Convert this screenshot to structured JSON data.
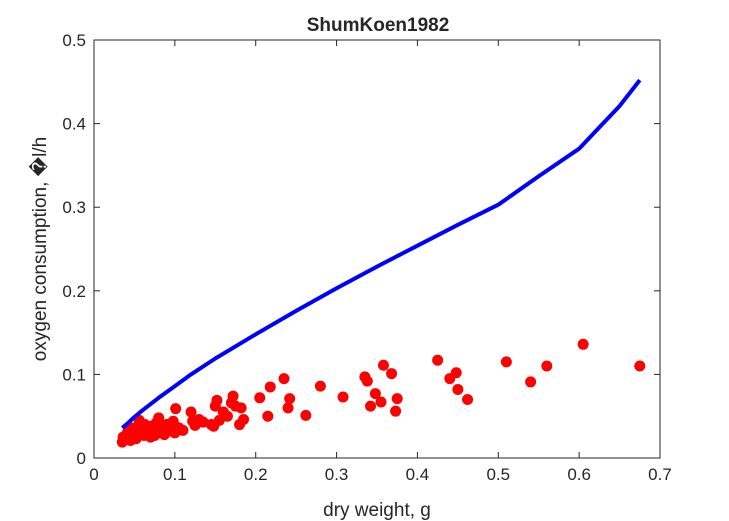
{
  "chart_data": {
    "type": "scatter",
    "title": "ShumKoen1982",
    "xlabel": "dry weight, g",
    "ylabel": "oxygen consumption, �l/h",
    "xlim": [
      0,
      0.7
    ],
    "ylim": [
      0,
      0.5
    ],
    "x_ticks": [
      "0",
      "0.1",
      "0.2",
      "0.3",
      "0.4",
      "0.5",
      "0.6",
      "0.7"
    ],
    "y_ticks": [
      "0",
      "0.1",
      "0.2",
      "0.3",
      "0.4",
      "0.5"
    ],
    "grid": false,
    "series": [
      {
        "style": "markers",
        "color": "#ff0000",
        "points": [
          [
            0.035,
            0.019
          ],
          [
            0.036,
            0.025
          ],
          [
            0.037,
            0.022
          ],
          [
            0.04,
            0.028
          ],
          [
            0.042,
            0.032
          ],
          [
            0.043,
            0.024
          ],
          [
            0.045,
            0.021
          ],
          [
            0.046,
            0.036
          ],
          [
            0.048,
            0.029
          ],
          [
            0.05,
            0.033
          ],
          [
            0.051,
            0.026
          ],
          [
            0.052,
            0.023
          ],
          [
            0.054,
            0.038
          ],
          [
            0.055,
            0.03
          ],
          [
            0.056,
            0.045
          ],
          [
            0.057,
            0.028
          ],
          [
            0.058,
            0.041
          ],
          [
            0.06,
            0.034
          ],
          [
            0.062,
            0.027
          ],
          [
            0.063,
            0.04
          ],
          [
            0.065,
            0.031
          ],
          [
            0.066,
            0.036
          ],
          [
            0.068,
            0.029
          ],
          [
            0.07,
            0.025
          ],
          [
            0.071,
            0.038
          ],
          [
            0.073,
            0.033
          ],
          [
            0.075,
            0.027
          ],
          [
            0.077,
            0.042
          ],
          [
            0.08,
            0.048
          ],
          [
            0.082,
            0.03
          ],
          [
            0.085,
            0.035
          ],
          [
            0.087,
            0.028
          ],
          [
            0.09,
            0.04
          ],
          [
            0.092,
            0.032
          ],
          [
            0.095,
            0.037
          ],
          [
            0.098,
            0.044
          ],
          [
            0.1,
            0.03
          ],
          [
            0.101,
            0.059
          ],
          [
            0.105,
            0.036
          ],
          [
            0.11,
            0.033
          ],
          [
            0.12,
            0.055
          ],
          [
            0.122,
            0.044
          ],
          [
            0.125,
            0.039
          ],
          [
            0.13,
            0.046
          ],
          [
            0.135,
            0.043
          ],
          [
            0.145,
            0.04
          ],
          [
            0.148,
            0.038
          ],
          [
            0.15,
            0.062
          ],
          [
            0.152,
            0.069
          ],
          [
            0.155,
            0.045
          ],
          [
            0.16,
            0.055
          ],
          [
            0.165,
            0.05
          ],
          [
            0.17,
            0.066
          ],
          [
            0.172,
            0.074
          ],
          [
            0.175,
            0.062
          ],
          [
            0.18,
            0.04
          ],
          [
            0.182,
            0.06
          ],
          [
            0.185,
            0.046
          ],
          [
            0.205,
            0.072
          ],
          [
            0.215,
            0.05
          ],
          [
            0.218,
            0.085
          ],
          [
            0.235,
            0.095
          ],
          [
            0.24,
            0.06
          ],
          [
            0.242,
            0.071
          ],
          [
            0.262,
            0.051
          ],
          [
            0.28,
            0.086
          ],
          [
            0.308,
            0.073
          ],
          [
            0.335,
            0.097
          ],
          [
            0.338,
            0.092
          ],
          [
            0.342,
            0.062
          ],
          [
            0.348,
            0.077
          ],
          [
            0.355,
            0.067
          ],
          [
            0.358,
            0.111
          ],
          [
            0.368,
            0.101
          ],
          [
            0.373,
            0.056
          ],
          [
            0.375,
            0.071
          ],
          [
            0.425,
            0.117
          ],
          [
            0.44,
            0.095
          ],
          [
            0.448,
            0.102
          ],
          [
            0.45,
            0.082
          ],
          [
            0.462,
            0.07
          ],
          [
            0.51,
            0.115
          ],
          [
            0.54,
            0.091
          ],
          [
            0.56,
            0.11
          ],
          [
            0.605,
            0.136
          ],
          [
            0.675,
            0.11
          ]
        ]
      },
      {
        "style": "line",
        "color": "#0000ff",
        "points": [
          [
            0.035,
            0.036
          ],
          [
            0.04,
            0.04
          ],
          [
            0.05,
            0.049
          ],
          [
            0.06,
            0.057
          ],
          [
            0.08,
            0.072
          ],
          [
            0.1,
            0.086
          ],
          [
            0.12,
            0.1
          ],
          [
            0.15,
            0.119
          ],
          [
            0.2,
            0.148
          ],
          [
            0.25,
            0.176
          ],
          [
            0.3,
            0.203
          ],
          [
            0.35,
            0.229
          ],
          [
            0.4,
            0.254
          ],
          [
            0.45,
            0.279
          ],
          [
            0.5,
            0.303
          ],
          [
            0.55,
            0.337
          ],
          [
            0.6,
            0.37
          ],
          [
            0.65,
            0.421
          ],
          [
            0.675,
            0.452
          ]
        ]
      }
    ]
  }
}
